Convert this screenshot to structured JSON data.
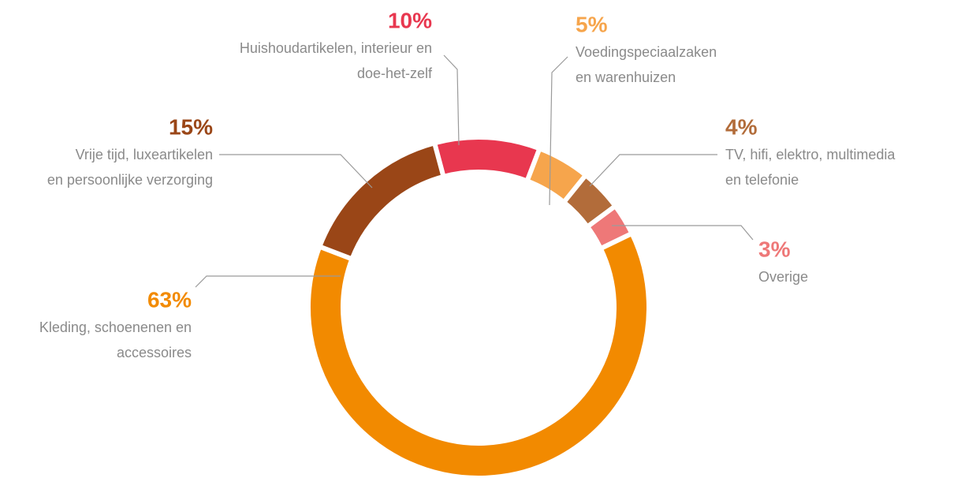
{
  "chart_data": {
    "type": "donut",
    "categories": [
      "Huishoudartikelen, interieur en doe-het-zelf",
      "Voedingspeciaalzaken en warenhuizen",
      "TV, hifi, elektro, multimedia en telefonie",
      "Overige",
      "Kleding, schoenenen en accessoires",
      "Vrije tijd, luxeartikelen en persoonlijke verzorging"
    ],
    "values": [
      10,
      5,
      4,
      3,
      63,
      15
    ],
    "value_labels": [
      "10%",
      "5%",
      "4%",
      "3%",
      "63%",
      "15%"
    ],
    "colors": [
      "#e8374f",
      "#f6a54c",
      "#b26c3a",
      "#ee7878",
      "#f28a00",
      "#9a4617"
    ]
  }
}
